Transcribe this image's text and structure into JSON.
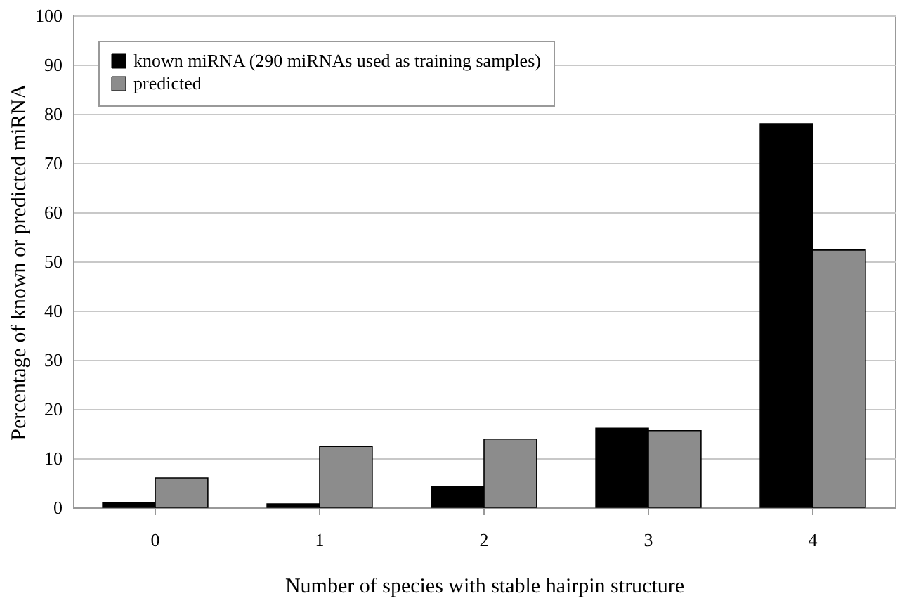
{
  "chart_data": {
    "type": "bar",
    "xlabel": "Number of species with stable hairpin structure",
    "ylabel": "Percentage of known or predicted miRNA",
    "categories": [
      "0",
      "1",
      "2",
      "3",
      "4"
    ],
    "series": [
      {
        "name": "known miRNA (290 miRNAs used as training samples)",
        "color": "#000000",
        "values": [
          1.0,
          0.7,
          4.2,
          16.1,
          78.0
        ]
      },
      {
        "name": "predicted",
        "color": "#8c8c8c",
        "values": [
          6.0,
          12.4,
          13.9,
          15.6,
          52.3
        ]
      }
    ],
    "ylim": [
      0,
      100
    ],
    "yticks": [
      0,
      10,
      20,
      30,
      40,
      50,
      60,
      70,
      80,
      90,
      100
    ],
    "grid": "y",
    "legend": "top left"
  }
}
